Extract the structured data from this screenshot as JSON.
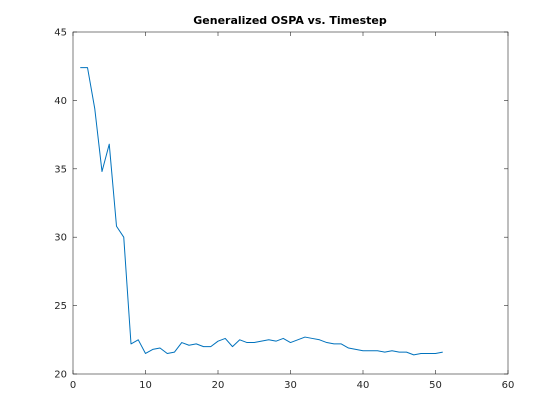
{
  "chart_data": {
    "type": "line",
    "title": "Generalized OSPA vs. Timestep",
    "xlabel": "",
    "ylabel": "",
    "xlim": [
      0,
      60
    ],
    "ylim": [
      20,
      45
    ],
    "xticks": [
      0,
      10,
      20,
      30,
      40,
      50,
      60
    ],
    "yticks": [
      20,
      25,
      30,
      35,
      40,
      45
    ],
    "grid": false,
    "series": [
      {
        "color": "#0072BD",
        "x": [
          1,
          2,
          3,
          4,
          5,
          6,
          7,
          8,
          9,
          10,
          11,
          12,
          13,
          14,
          15,
          16,
          17,
          18,
          19,
          20,
          21,
          22,
          23,
          24,
          25,
          26,
          27,
          28,
          29,
          30,
          31,
          32,
          33,
          34,
          35,
          36,
          37,
          38,
          39,
          40,
          41,
          42,
          43,
          44,
          45,
          46,
          47,
          48,
          49,
          50,
          51
        ],
        "y": [
          42.4,
          42.4,
          39.4,
          34.8,
          36.8,
          30.8,
          30.0,
          22.2,
          22.5,
          21.5,
          21.8,
          21.9,
          21.5,
          21.6,
          22.3,
          22.1,
          22.2,
          22.0,
          22.0,
          22.4,
          22.6,
          22.0,
          22.5,
          22.3,
          22.3,
          22.4,
          22.5,
          22.4,
          22.6,
          22.3,
          22.5,
          22.7,
          22.6,
          22.5,
          22.3,
          22.2,
          22.2,
          21.9,
          21.8,
          21.7,
          21.7,
          21.7,
          21.6,
          21.7,
          21.6,
          21.6,
          21.4,
          21.5,
          21.5,
          21.5,
          21.6
        ]
      }
    ]
  }
}
